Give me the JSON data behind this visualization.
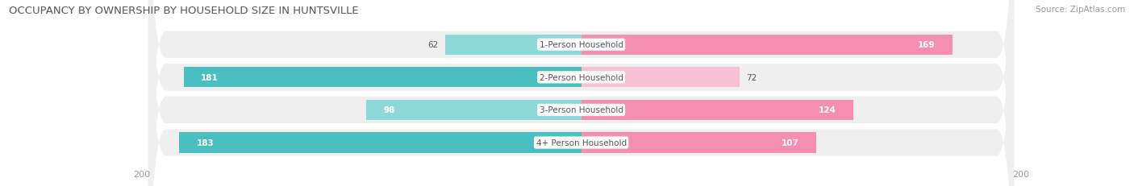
{
  "title": "OCCUPANCY BY OWNERSHIP BY HOUSEHOLD SIZE IN HUNTSVILLE",
  "source": "Source: ZipAtlas.com",
  "categories": [
    "1-Person Household",
    "2-Person Household",
    "3-Person Household",
    "4+ Person Household"
  ],
  "owner_values": [
    62,
    181,
    98,
    183
  ],
  "renter_values": [
    169,
    72,
    124,
    107
  ],
  "max_val": 200,
  "owner_color": "#4BBFBF",
  "renter_color": "#F48FB1",
  "owner_color_light": "#8ED8D8",
  "renter_color_light": "#F8C0D4",
  "row_bg_color": "#EFEFEF",
  "title_fontsize": 9.5,
  "source_fontsize": 7.5,
  "label_fontsize": 7.5,
  "axis_fontsize": 8,
  "bar_height": 0.62,
  "figsize": [
    14.06,
    2.32
  ],
  "dpi": 100,
  "bg_color": "#FFFFFF"
}
